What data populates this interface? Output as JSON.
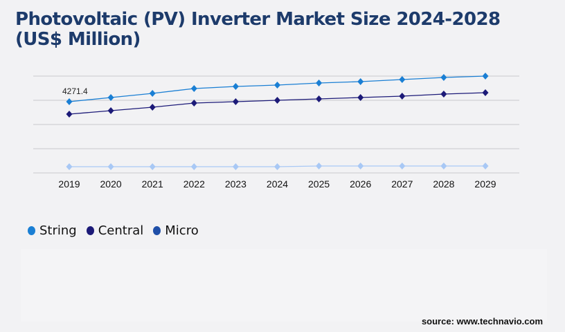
{
  "title": "Photovoltaic (PV) Inverter Market Size 2024-2028 (US$ Million)",
  "source": "source: www.technavio.com",
  "chart_data": {
    "type": "line",
    "title": "Photovoltaic (PV) Inverter Market Size 2024-2028 (US$ Million)",
    "categories": [
      "2019",
      "2020",
      "2021",
      "2022",
      "2023",
      "2024",
      "2025",
      "2026",
      "2027",
      "2028",
      "2029"
    ],
    "ylim": [
      0,
      5806
    ],
    "grid": true,
    "legend": "bottom-left",
    "annotations": [
      {
        "series": "String",
        "category": "2019",
        "text": "4271.4"
      }
    ],
    "series": [
      {
        "name": "String",
        "color": "#1a7fd4",
        "marker": "#1a7fd4",
        "values": [
          4271.4,
          4520,
          4769,
          5059,
          5184,
          5267,
          5391,
          5474,
          5598,
          5723,
          5806
        ]
      },
      {
        "name": "Central",
        "color": "#1c1a78",
        "marker": "#1c1a78",
        "values": [
          3525,
          3732,
          3940,
          4188,
          4271,
          4354,
          4437,
          4520,
          4603,
          4728,
          4810
        ]
      },
      {
        "name": "Micro",
        "color": "#a8c8f5",
        "marker": "#1f4fa8",
        "values": [
          373,
          373,
          373,
          373,
          373,
          373,
          415,
          415,
          415,
          415,
          415
        ]
      }
    ]
  }
}
